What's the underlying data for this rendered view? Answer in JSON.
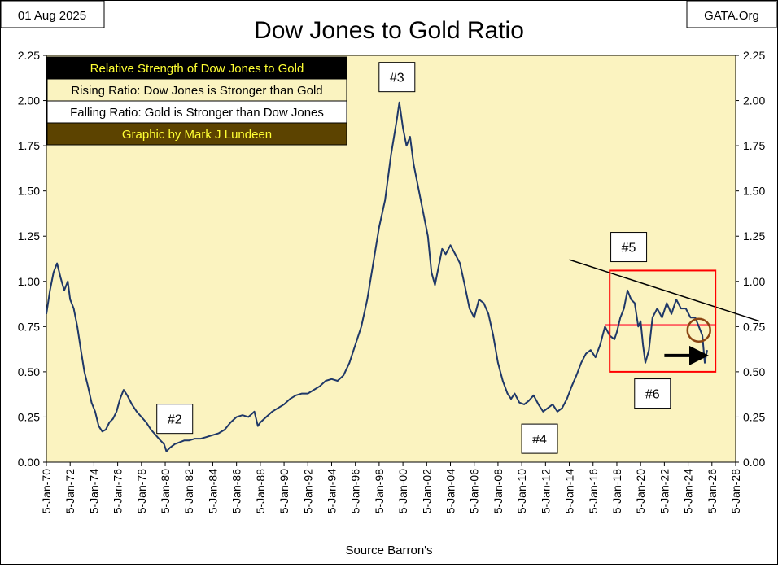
{
  "chart_data": {
    "type": "line",
    "title": "Dow Jones to Gold Ratio",
    "date_label": "01 Aug 2025",
    "brand_label": "GATA.Org",
    "source_label": "Source Barron's",
    "ylim": [
      0,
      2.25
    ],
    "y_ticks": [
      "0.00",
      "0.25",
      "0.50",
      "0.75",
      "1.00",
      "1.25",
      "1.50",
      "1.75",
      "2.00",
      "2.25"
    ],
    "x_range": [
      1970.0,
      2028.0
    ],
    "x_ticks": [
      "5-Jan-70",
      "5-Jan-72",
      "5-Jan-74",
      "5-Jan-76",
      "5-Jan-78",
      "5-Jan-80",
      "5-Jan-82",
      "5-Jan-84",
      "5-Jan-86",
      "5-Jan-88",
      "5-Jan-90",
      "5-Jan-92",
      "5-Jan-94",
      "5-Jan-96",
      "5-Jan-98",
      "5-Jan-00",
      "5-Jan-02",
      "5-Jan-04",
      "5-Jan-06",
      "5-Jan-08",
      "5-Jan-10",
      "5-Jan-12",
      "5-Jan-14",
      "5-Jan-16",
      "5-Jan-18",
      "5-Jan-20",
      "5-Jan-22",
      "5-Jan-24",
      "5-Jan-26",
      "5-Jan-28"
    ],
    "grid": false,
    "legend": {
      "placement": "top-left",
      "items": [
        {
          "text": "Relative Strength of Dow Jones to Gold",
          "bg": "#000000",
          "fg": "#ffff33"
        },
        {
          "text": "Rising Ratio: Dow Jones is Stronger than Gold",
          "bg": "#faf3c0",
          "fg": "#000000"
        },
        {
          "text": "Falling Ratio: Gold is Stronger than Dow Jones",
          "bg": "#ffffff",
          "fg": "#000000"
        },
        {
          "text": "Graphic by Mark J Lundeen",
          "bg": "#5c4300",
          "fg": "#ffff33"
        }
      ]
    },
    "annotations": [
      {
        "text": "#2",
        "x": 1980.8,
        "y": 0.24
      },
      {
        "text": "#3",
        "x": 1999.5,
        "y": 2.13
      },
      {
        "text": "#4",
        "x": 2011.5,
        "y": 0.13
      },
      {
        "text": "#5",
        "x": 2019.0,
        "y": 1.19
      },
      {
        "text": "#6",
        "x": 2021.0,
        "y": 0.38
      }
    ],
    "series": [
      {
        "color": "#1f3868",
        "x": [
          1970.0,
          1970.3,
          1970.6,
          1970.9,
          1971.2,
          1971.5,
          1971.8,
          1972.0,
          1972.3,
          1972.6,
          1972.9,
          1973.2,
          1973.5,
          1973.8,
          1974.1,
          1974.4,
          1974.7,
          1975.0,
          1975.3,
          1975.6,
          1975.9,
          1976.2,
          1976.5,
          1976.8,
          1977.2,
          1977.6,
          1978.0,
          1978.4,
          1978.8,
          1979.2,
          1979.6,
          1979.9,
          1980.1,
          1980.4,
          1980.8,
          1981.2,
          1981.6,
          1982.0,
          1982.5,
          1983.0,
          1983.5,
          1984.0,
          1984.5,
          1985.0,
          1985.5,
          1986.0,
          1986.5,
          1987.0,
          1987.5,
          1987.8,
          1988.0,
          1988.5,
          1989.0,
          1989.5,
          1990.0,
          1990.5,
          1991.0,
          1991.5,
          1992.0,
          1992.5,
          1993.0,
          1993.5,
          1994.0,
          1994.5,
          1995.0,
          1995.5,
          1996.0,
          1996.5,
          1997.0,
          1997.5,
          1998.0,
          1998.5,
          1999.0,
          1999.5,
          1999.7,
          2000.0,
          2000.3,
          2000.6,
          2000.9,
          2001.2,
          2001.5,
          2001.8,
          2002.1,
          2002.4,
          2002.7,
          2003.0,
          2003.3,
          2003.6,
          2004.0,
          2004.4,
          2004.8,
          2005.2,
          2005.6,
          2006.0,
          2006.4,
          2006.8,
          2007.2,
          2007.6,
          2008.0,
          2008.4,
          2008.8,
          2009.1,
          2009.4,
          2009.8,
          2010.2,
          2010.6,
          2011.0,
          2011.4,
          2011.8,
          2012.2,
          2012.6,
          2013.0,
          2013.4,
          2013.8,
          2014.2,
          2014.6,
          2015.0,
          2015.4,
          2015.8,
          2016.2,
          2016.6,
          2017.0,
          2017.4,
          2017.8,
          2018.0,
          2018.3,
          2018.6,
          2018.9,
          2019.2,
          2019.5,
          2019.8,
          2020.0,
          2020.2,
          2020.4,
          2020.7,
          2021.0,
          2021.4,
          2021.8,
          2022.2,
          2022.6,
          2023.0,
          2023.4,
          2023.8,
          2024.2,
          2024.6,
          2024.9,
          2025.2,
          2025.4,
          2025.6
        ],
        "y": [
          0.82,
          0.95,
          1.05,
          1.1,
          1.02,
          0.95,
          1.0,
          0.9,
          0.85,
          0.75,
          0.62,
          0.5,
          0.42,
          0.33,
          0.28,
          0.2,
          0.17,
          0.18,
          0.22,
          0.24,
          0.28,
          0.35,
          0.4,
          0.37,
          0.32,
          0.28,
          0.25,
          0.22,
          0.18,
          0.15,
          0.12,
          0.1,
          0.06,
          0.08,
          0.1,
          0.11,
          0.12,
          0.12,
          0.13,
          0.13,
          0.14,
          0.15,
          0.16,
          0.18,
          0.22,
          0.25,
          0.26,
          0.25,
          0.28,
          0.2,
          0.22,
          0.25,
          0.28,
          0.3,
          0.32,
          0.35,
          0.37,
          0.38,
          0.38,
          0.4,
          0.42,
          0.45,
          0.46,
          0.45,
          0.48,
          0.55,
          0.65,
          0.75,
          0.9,
          1.1,
          1.3,
          1.45,
          1.7,
          1.9,
          1.99,
          1.85,
          1.75,
          1.8,
          1.65,
          1.55,
          1.45,
          1.35,
          1.25,
          1.05,
          0.98,
          1.08,
          1.18,
          1.15,
          1.2,
          1.15,
          1.1,
          0.98,
          0.85,
          0.8,
          0.9,
          0.88,
          0.82,
          0.7,
          0.55,
          0.45,
          0.38,
          0.35,
          0.38,
          0.33,
          0.32,
          0.34,
          0.37,
          0.32,
          0.28,
          0.3,
          0.32,
          0.28,
          0.3,
          0.35,
          0.42,
          0.48,
          0.55,
          0.6,
          0.62,
          0.58,
          0.65,
          0.75,
          0.7,
          0.68,
          0.72,
          0.8,
          0.85,
          0.95,
          0.9,
          0.88,
          0.75,
          0.78,
          0.65,
          0.55,
          0.62,
          0.8,
          0.85,
          0.8,
          0.88,
          0.82,
          0.9,
          0.85,
          0.85,
          0.8,
          0.8,
          0.75,
          0.7,
          0.55,
          0.62
        ]
      }
    ],
    "reference_lines": [
      {
        "kind": "horizontal",
        "y": 0.76,
        "x": [
          2017.0,
          2026.3
        ],
        "color": "#ff6666"
      },
      {
        "kind": "trend",
        "x": [
          2014.0,
          2030.0
        ],
        "y": [
          1.12,
          0.78
        ],
        "color": "#000000"
      }
    ],
    "highlights": [
      {
        "kind": "rectangle",
        "x": [
          2017.4,
          2026.3
        ],
        "y": [
          0.5,
          1.06
        ],
        "color": "#ff0000"
      },
      {
        "kind": "circle",
        "x": 2024.9,
        "y": 0.73,
        "color": "#8b4513"
      },
      {
        "kind": "arrow",
        "x": [
          2022.0,
          2025.6
        ],
        "y": [
          0.59,
          0.59
        ],
        "color": "#000000"
      }
    ]
  }
}
